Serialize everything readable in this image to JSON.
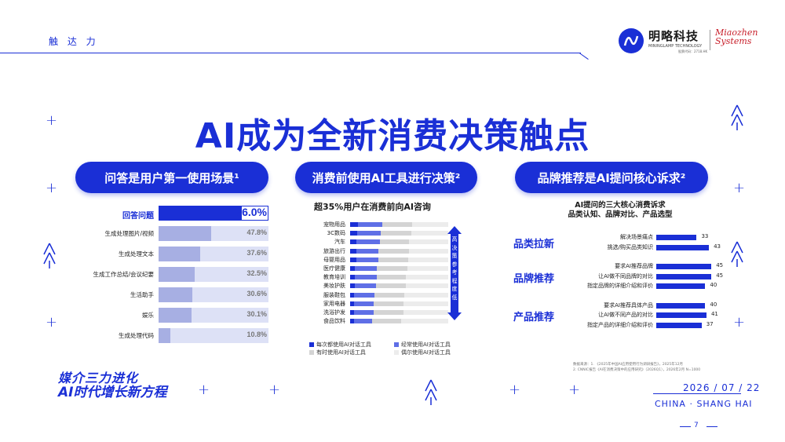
{
  "header": {
    "section_label": "触 达 力",
    "brand_cn": "明略科技",
    "brand_en": "MININGLAMP TECHNOLOGY",
    "brand_stock": "股票代码：2718.HK",
    "partner_line1": "Miaozhen",
    "partner_line2": "Systems"
  },
  "title": "AI成为全新消费决策触点",
  "panels": [
    {
      "pill": "问答是用户第一使用场景¹"
    },
    {
      "pill": "消费前使用AI工具进行决策²",
      "subtitle": "超35%用户在消费前向AI咨询"
    },
    {
      "pill": "品牌推荐是AI提问核心诉求²",
      "subtitle_line1": "AI提问的三大核心消费诉求",
      "subtitle_line2": "品类认知、品牌对比、产品选型"
    }
  ],
  "colors": {
    "brand": "#1a2fd6",
    "light_bar": "#c5cbf2",
    "dark_bar": "#1a2fd6",
    "track": "#d6dbf5",
    "grey": "#d9d9d9"
  },
  "chart_data": [
    {
      "type": "bar",
      "orientation": "horizontal",
      "categories": [
        "回答问题",
        "生成处理图片/视频",
        "生成处理文本",
        "生成工作总结/会议纪要",
        "生活助手",
        "娱乐",
        "生成处理代码"
      ],
      "values": [
        76.0,
        47.8,
        37.6,
        32.5,
        30.6,
        30.1,
        10.8
      ],
      "value_labels": [
        "76.0%",
        "47.8%",
        "37.6%",
        "32.5%",
        "30.6%",
        "30.1%",
        "10.8%"
      ],
      "xlim": [
        0,
        100
      ]
    },
    {
      "type": "bar",
      "orientation": "horizontal",
      "stacked": true,
      "categories": [
        "宠物用品",
        "3C数码",
        "汽车",
        "旅游出行",
        "母婴用品",
        "医疗健康",
        "教育培训",
        "美妆护肤",
        "服装鞋包",
        "家用电器",
        "洗浴护发",
        "食品饮料"
      ],
      "series": [
        {
          "name": "每次都使用AI对话工具",
          "values": [
            8,
            7,
            6,
            6,
            6,
            5,
            5,
            5,
            4,
            4,
            4,
            4
          ]
        },
        {
          "name": "经常使用AI对话工具",
          "values": [
            25,
            24,
            24,
            23,
            23,
            22,
            22,
            21,
            21,
            20,
            20,
            18
          ]
        },
        {
          "name": "有时使用AI对话工具",
          "values": [
            30,
            31,
            30,
            31,
            30,
            31,
            30,
            31,
            30,
            30,
            30,
            30
          ]
        },
        {
          "name": "偶尔使用AI对话工具",
          "values": [
            37,
            38,
            40,
            40,
            41,
            42,
            43,
            43,
            45,
            46,
            46,
            48
          ]
        }
      ],
      "arrow_top": "高",
      "arrow_mid": "决策参考程度",
      "arrow_bottom": "低",
      "xlim": [
        0,
        100
      ]
    },
    {
      "type": "bar",
      "orientation": "horizontal",
      "groups": [
        {
          "name": "品类拉新",
          "categories": [
            "解决场景痛点",
            "挑选/购买品类知识"
          ],
          "values": [
            33,
            43
          ]
        },
        {
          "name": "品牌推荐",
          "categories": [
            "要求AI推荐品牌",
            "让AI做不同品牌的对比",
            "指定品牌的详细介绍和评价"
          ],
          "values": [
            45,
            45,
            40
          ]
        },
        {
          "name": "产品推荐",
          "categories": [
            "要求AI推荐具体产品",
            "让AI做不同产品的对比",
            "指定产品的详细介绍和评价"
          ],
          "values": [
            40,
            41,
            37
          ]
        }
      ],
      "xlim": [
        0,
        50
      ]
    }
  ],
  "footer": {
    "sources_line1": "数据来源：1. 《2025年中国AI应用使用行为调研报告》，2025年12月",
    "sources_line2": "2. CNNIC报告《AI在消费决策中的应用研究》（2026Q1），2026年2月 N=1000",
    "slogan_line1": "媒介三力进化",
    "slogan_line2": "AI时代增长新方程",
    "date": "2026 / 07 / 22",
    "city": "CHINA · SHANG HAI",
    "page": "7"
  }
}
